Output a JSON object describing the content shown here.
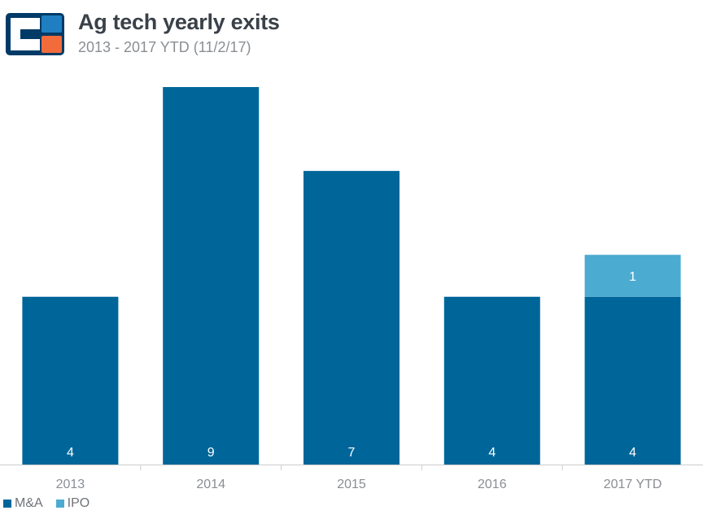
{
  "header": {
    "title": "Ag tech yearly exits",
    "subtitle": "2013 - 2017 YTD (11/2/17)"
  },
  "colors": {
    "ma": "#006699",
    "ipo": "#4babd1",
    "axis": "#cccccc",
    "tick_text": "#8a8e93",
    "logo_dark": "#003a66",
    "logo_blue": "#1f7fc0",
    "logo_orange": "#f26b3a"
  },
  "chart_data": {
    "type": "bar",
    "stacked": true,
    "categories": [
      "2013",
      "2014",
      "2015",
      "2016",
      "2017 YTD"
    ],
    "series": [
      {
        "name": "M&A",
        "values": [
          4,
          9,
          7,
          4,
          4
        ]
      },
      {
        "name": "IPO",
        "values": [
          0,
          0,
          0,
          0,
          1
        ]
      }
    ],
    "ylim": [
      0,
      9
    ],
    "grid": false,
    "legend_position": "bottom-left",
    "data_labels": true
  },
  "legend": {
    "items": [
      {
        "label": "M&A"
      },
      {
        "label": "IPO"
      }
    ]
  }
}
